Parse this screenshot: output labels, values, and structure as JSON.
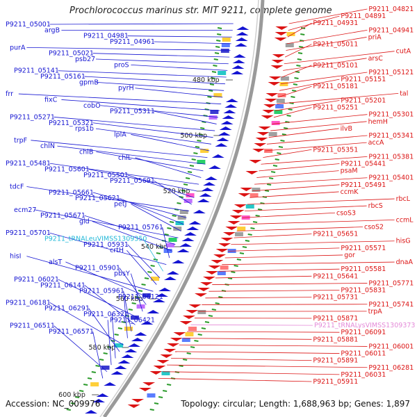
{
  "title": "Prochlorococcus marinus str. MIT 9211, complete genome",
  "accession": "Accession: NC_009976",
  "summary": "Topology: circular; Length: 1,688,963 bp; Genes: 1,897",
  "colors": {
    "forward_strand": "#1414d2",
    "reverse_strand": "#dc1414",
    "trna_forward": "#22b8d8",
    "trna_reverse": "#e48ad8",
    "backbone": "#9a9a9a",
    "gc_skew": "#2a9a2a"
  },
  "scale_ticks": [
    "480 kbp",
    "500 kbp",
    "520 kbp",
    "540 kbp",
    "560 kbp",
    "580 kbp",
    "600 kbp"
  ],
  "forward_labels": [
    "P9211_05001",
    "argB",
    "P9211_04981",
    "P9211_04961",
    "purA",
    "P9211_05021",
    "psb27",
    "proS",
    "P9211_05141",
    "P9211_05161",
    "gpmB",
    "pyrH",
    "frr",
    "fixC",
    "cobO",
    "P9211_05311",
    "P9211_05271",
    "P9211_05321",
    "rps1b",
    "lplA",
    "trpF",
    "chlN",
    "chlB",
    "chlL",
    "P9211_05481",
    "P9211_05601",
    "P9211_05501",
    "P9211_05691",
    "tdcF",
    "P9211_05661",
    "P9211_05621",
    "petJ",
    "ecm27",
    "P9211_05671",
    "gid",
    "P9211_05761",
    "P9211_05701",
    "P9211_tRNALeuVIMSS1309350",
    "P9211_05931",
    "crtH",
    "hisI",
    "alsT",
    "P9211_05901",
    "pbsY",
    "P9211_06021",
    "P9211_06141",
    "P9211_05961",
    "P9211_06121",
    "P9211_06181",
    "P9211_06291",
    "P9211_06321",
    "P9211_06421",
    "P9211_06511",
    "P9211_06571"
  ],
  "reverse_labels": [
    "P9211_04821",
    "P9211_04891",
    "P9211_04931",
    "P9211_04941",
    "priA",
    "P9211_05011",
    "cutA",
    "arsC",
    "P9211_05101",
    "P9211_05121",
    "P9211_05151",
    "P9211_05181",
    "tal",
    "P9211_05201",
    "P9211_05251",
    "P9211_05301",
    "hemH",
    "ilvB",
    "P9211_05341",
    "accA",
    "P9211_05351",
    "P9211_05381",
    "P9211_05441",
    "psaM",
    "P9211_05401",
    "P9211_05491",
    "ccmK",
    "rbcL",
    "rbcS",
    "csoS3",
    "ccmL",
    "csoS2",
    "P9211_05651",
    "hisG",
    "P9211_05571",
    "gor",
    "dnaA",
    "P9211_05581",
    "P9211_05641",
    "P9211_05771",
    "P9211_05831",
    "P9211_05731",
    "P9211_05741",
    "trpA",
    "P9211_05871",
    "P9211_tRNALysVIMSS1309373",
    "P9211_06091",
    "P9211_05881",
    "P9211_06001",
    "P9211_06011",
    "P9211_05891",
    "P9211_06281",
    "P9211_06031",
    "P9211_05911"
  ]
}
